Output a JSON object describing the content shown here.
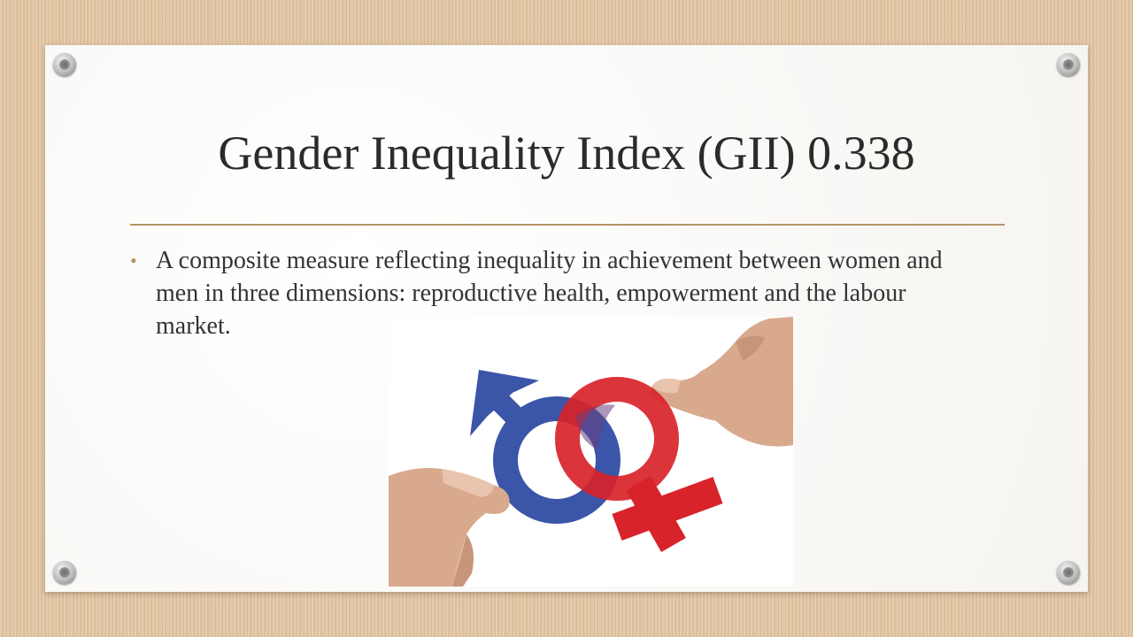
{
  "slide": {
    "title": "Gender Inequality Index (GII) 0.338",
    "bullets": [
      "A composite measure reflecting inequality in achievement between women and men in three dimensions: reproductive health, empowerment and the labour market."
    ]
  },
  "image": {
    "icons": [
      "male-symbol-icon",
      "female-symbol-icon"
    ]
  },
  "colors": {
    "accent": "#b8946a",
    "male_symbol": "#3b55a8",
    "female_symbol": "#d8232a",
    "background": "#e3c9a7"
  }
}
